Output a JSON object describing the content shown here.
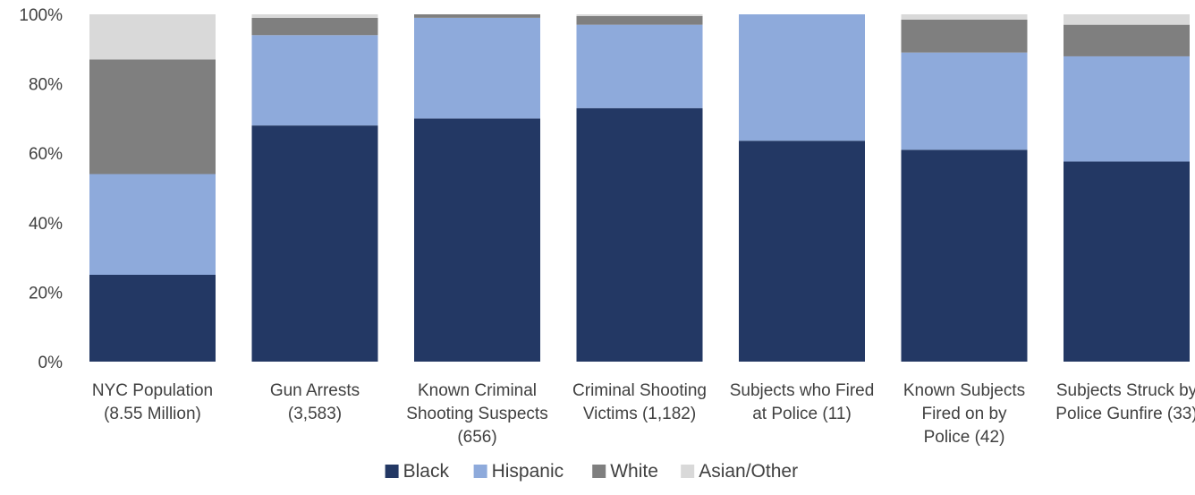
{
  "chart_data": {
    "type": "bar",
    "stacked": true,
    "categories": [
      [
        "NYC Population",
        "(8.55 Million)"
      ],
      [
        "Gun Arrests",
        "(3,583)"
      ],
      [
        "Known Criminal",
        "Shooting Suspects",
        "(656)"
      ],
      [
        "Criminal Shooting",
        "Victims (1,182)"
      ],
      [
        "Subjects who Fired",
        "at Police (11)"
      ],
      [
        "Known Subjects",
        "Fired on by",
        "Police (42)"
      ],
      [
        "Subjects Struck by",
        "Police Gunfire (33)"
      ]
    ],
    "series": [
      {
        "name": "Black",
        "color": "#233864",
        "values": [
          25,
          68,
          70,
          73,
          63.6,
          61,
          57.6
        ]
      },
      {
        "name": "Hispanic",
        "color": "#8eaadb",
        "values": [
          29,
          26,
          29,
          24,
          36.4,
          28,
          30.3
        ]
      },
      {
        "name": "White",
        "color": "#7f7f7f",
        "values": [
          33,
          5,
          1,
          2.5,
          0,
          9.5,
          9.1
        ]
      },
      {
        "name": "Asian/Other",
        "color": "#d9d9d9",
        "values": [
          13,
          1,
          0,
          0.5,
          0,
          1.5,
          3.0
        ]
      }
    ],
    "ylim": [
      0,
      100
    ],
    "yticks": [
      "0%",
      "20%",
      "40%",
      "60%",
      "80%",
      "100%"
    ],
    "ytick_values": [
      0,
      20,
      40,
      60,
      80,
      100
    ],
    "xlabel": "",
    "ylabel": "",
    "title": "",
    "legend_position": "bottom",
    "grid": false
  }
}
